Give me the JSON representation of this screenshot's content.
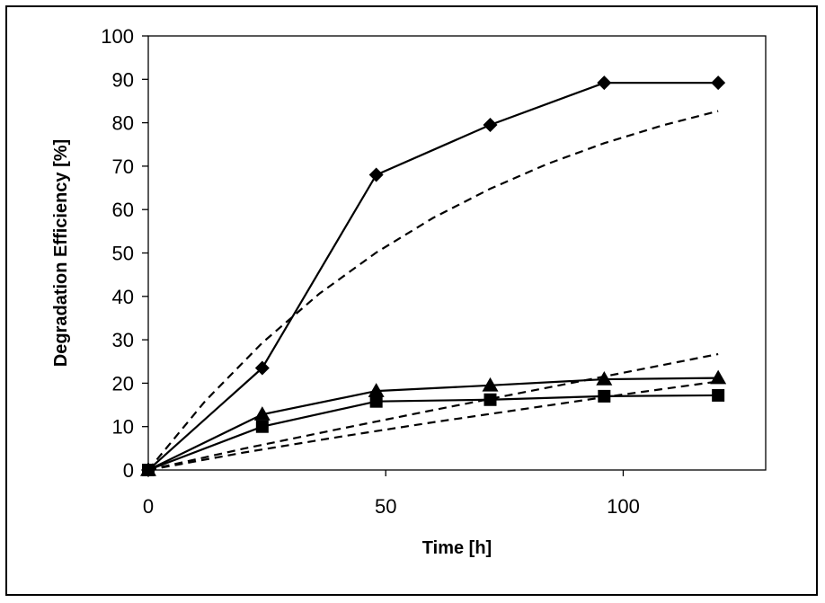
{
  "chart_data": {
    "type": "line",
    "title": "",
    "xlabel": "Time [h]",
    "ylabel": "Degradation Efficiency [%]",
    "xlim": [
      0,
      130
    ],
    "ylim": [
      0,
      100
    ],
    "x_ticks": [
      "0",
      "50",
      "100"
    ],
    "x_tick_values": [
      0,
      50,
      100
    ],
    "y_ticks": [
      "0",
      "10",
      "20",
      "30",
      "40",
      "50",
      "60",
      "70",
      "80",
      "90",
      "100"
    ],
    "y_tick_values": [
      0,
      10,
      20,
      30,
      40,
      50,
      60,
      70,
      80,
      90,
      100
    ],
    "grid": false,
    "legend": "none",
    "series": [
      {
        "marker": "diamond",
        "style": "solid",
        "color": "#000000",
        "x": [
          0,
          24,
          48,
          72,
          96,
          120
        ],
        "y": [
          0,
          23.5,
          68,
          79.5,
          89.2,
          89.2
        ]
      },
      {
        "marker": "triangle",
        "style": "solid",
        "color": "#000000",
        "x": [
          0,
          24,
          48,
          72,
          96,
          120
        ],
        "y": [
          0,
          12.8,
          18.2,
          19.5,
          20.9,
          21.2
        ]
      },
      {
        "marker": "square",
        "style": "solid",
        "color": "#000000",
        "x": [
          0,
          24,
          48,
          72,
          96,
          120
        ],
        "y": [
          0,
          10,
          15.8,
          16.2,
          17,
          17.2
        ]
      },
      {
        "marker": "none",
        "style": "dashed",
        "color": "#000000",
        "x": [
          0,
          12,
          24,
          36,
          48,
          60,
          72,
          84,
          96,
          108,
          120
        ],
        "y": [
          0,
          15.9,
          29.3,
          40.6,
          50.1,
          58.1,
          64.8,
          70.5,
          75.3,
          79.3,
          82.7
        ]
      },
      {
        "marker": "none",
        "style": "dashed",
        "color": "#000000",
        "x": [
          0,
          20,
          40,
          60,
          80,
          100,
          120
        ],
        "y": [
          0,
          4.9,
          9.4,
          13.8,
          18.1,
          22.4,
          26.7
        ]
      },
      {
        "marker": "none",
        "style": "dashed",
        "color": "#000000",
        "x": [
          0,
          20,
          40,
          60,
          80,
          100,
          120
        ],
        "y": [
          0,
          4.0,
          7.6,
          11.0,
          14.2,
          17.4,
          20.4
        ]
      }
    ]
  }
}
